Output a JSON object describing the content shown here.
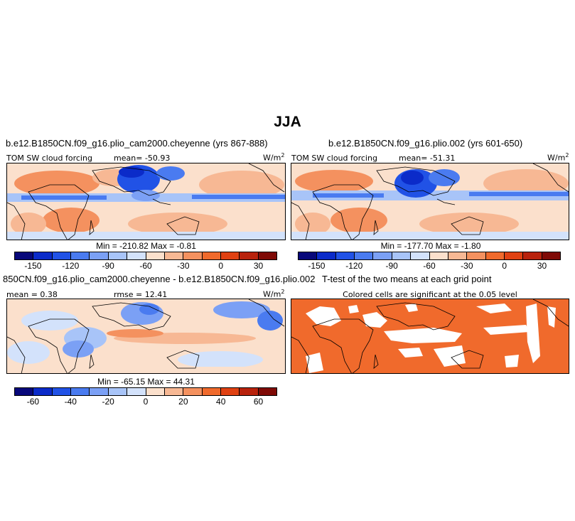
{
  "season": "JJA",
  "panels": {
    "p1": {
      "title": "b.e12.B1850CN.f09_g16.plio_cam2000.cheyenne (yrs 867-888)",
      "left_label": "TOM SW cloud forcing",
      "stat_label": "mean= -50.93",
      "units": "W/m",
      "units_sup": "2",
      "minmax": "Min = -210.82  Max =  -0.81",
      "ticks": [
        "-150",
        "-120",
        "-90",
        "-60",
        "-30",
        "0",
        "30"
      ]
    },
    "p2": {
      "title": "b.e12.B1850CN.f09_g16.plio.002 (yrs 601-650)",
      "left_label": "TOM SW cloud forcing",
      "stat_label": "mean= -51.31",
      "units": "W/m",
      "units_sup": "2",
      "minmax": "Min = -177.70  Max =  -1.80",
      "ticks": [
        "-150",
        "-120",
        "-90",
        "-60",
        "-30",
        "0",
        "30"
      ]
    },
    "p3": {
      "title": "850CN.f09_g16.plio_cam2000.cheyenne - b.e12.B1850CN.f09_g16.plio.002",
      "mean_label": "mean =  0.38",
      "rmse_label": "rmse =  12.41",
      "units": "W/m",
      "units_sup": "2",
      "minmax": "Min = -65.15  Max =  44.31",
      "ticks": [
        "-60",
        "-40",
        "-20",
        "0",
        "20",
        "40",
        "60"
      ]
    },
    "p4": {
      "title": "T-test of the two means at each grid point",
      "subtitle": "Colored cells are significant at the 0.05 level"
    }
  },
  "colorbar_colors": [
    "#08087a",
    "#0b2bc9",
    "#2152e6",
    "#4a7bf0",
    "#7ba0f5",
    "#a8c4f8",
    "#d3e2fb",
    "#fbe0cc",
    "#f7b894",
    "#f4915f",
    "#f06a2c",
    "#e04112",
    "#b8220c",
    "#7f0a06"
  ],
  "ttest_color": "#f06a2c"
}
